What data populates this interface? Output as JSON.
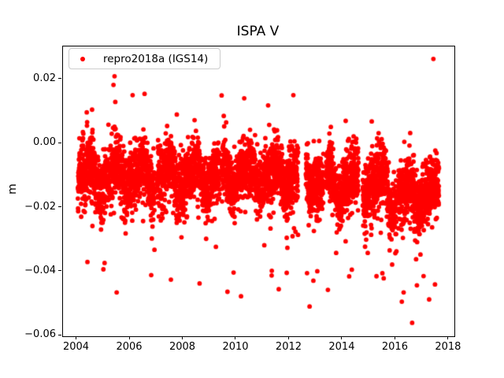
{
  "chart_data": {
    "type": "scatter",
    "title": "ISPA V",
    "xlabel": "",
    "ylabel": "m",
    "grid": false,
    "background": "#ffffff",
    "legend": {
      "label": "repro2018a (IGS14)",
      "marker_color": "#ff0000",
      "position": "upper left"
    },
    "axes": {
      "xlim": [
        2003.48,
        2018.21
      ],
      "ylim": [
        -0.0602,
        0.0303
      ],
      "xticks": [
        2004,
        2006,
        2008,
        2010,
        2012,
        2014,
        2016,
        2018
      ],
      "xtick_labels": [
        "2004",
        "2006",
        "2008",
        "2010",
        "2012",
        "2014",
        "2016",
        "2018"
      ],
      "yticks": [
        0.02,
        0.0,
        -0.02,
        -0.04,
        -0.06
      ],
      "ytick_labels": [
        "0.02",
        "0.00",
        "−0.02",
        "−0.04",
        "−0.06"
      ]
    },
    "marker": {
      "color": "#ff0000",
      "radius_px": 2.9,
      "shape": "circle"
    },
    "series": [
      {
        "name": "repro2018a (IGS14)",
        "color": "#ff0000",
        "description": "Daily GPS vertical position residuals (m) for station ISPA, dense seasonal band centered near -0.010 m drifting to about -0.016 m after 2015, spread roughly 0.00 to -0.025 m with a lower tail to -0.045 m",
        "generator": {
          "seed": 42,
          "t_start": 2004.04,
          "t_end": 2017.63,
          "points_per_year": 365,
          "base_mean": [
            [
              2004.0,
              -0.01
            ],
            [
              2013.0,
              -0.0125
            ],
            [
              2015.7,
              -0.016
            ]
          ],
          "seasonal": {
            "annual_amp": 0.0035,
            "annual_phase": 0.42,
            "semiannual_amp": 0.0016,
            "semiannual_phase": 0.08
          },
          "noise_sigma": 0.0047,
          "lower_tail": {
            "prob": 0.055,
            "scale": 0.0075,
            "max_excursion": 0.035
          },
          "upper_tail": {
            "prob": 0.02,
            "scale": 0.005,
            "max_excursion": 0.018
          },
          "clamp": [
            -0.052,
            0.022
          ],
          "gaps": [
            [
              2006.93,
              2007.02
            ],
            [
              2009.38,
              2009.46
            ],
            [
              2012.33,
              2012.62
            ],
            [
              2013.28,
              2013.38
            ],
            [
              2014.6,
              2014.76
            ],
            [
              2016.03,
              2016.1
            ]
          ]
        },
        "notable_points": [
          [
            2017.42,
            0.0264
          ],
          [
            2016.62,
            -0.056
          ],
          [
            2005.42,
            0.021
          ],
          [
            2005.38,
            0.0183
          ],
          [
            2006.1,
            0.0151
          ],
          [
            2006.55,
            0.0155
          ],
          [
            2009.45,
            0.015
          ],
          [
            2010.3,
            0.0141
          ],
          [
            2011.2,
            0.0119
          ],
          [
            2012.15,
            0.0151
          ],
          [
            2015.1,
            0.0069
          ],
          [
            2004.4,
            -0.037
          ],
          [
            2005.0,
            -0.0393
          ],
          [
            2005.5,
            -0.0465
          ],
          [
            2006.8,
            -0.0411
          ],
          [
            2008.62,
            -0.0437
          ],
          [
            2009.67,
            -0.0463
          ],
          [
            2009.9,
            -0.0403
          ],
          [
            2010.18,
            -0.0477
          ],
          [
            2011.6,
            -0.0455
          ],
          [
            2011.9,
            -0.0404
          ],
          [
            2013.05,
            -0.0399
          ],
          [
            2013.45,
            -0.0457
          ],
          [
            2014.25,
            -0.0415
          ],
          [
            2014.35,
            -0.0394
          ],
          [
            2015.5,
            -0.0405
          ],
          [
            2015.55,
            -0.0421
          ],
          [
            2016.3,
            -0.0465
          ],
          [
            2016.8,
            -0.0443
          ],
          [
            2017.05,
            -0.0414
          ],
          [
            2017.26,
            -0.0487
          ],
          [
            2017.48,
            -0.044
          ]
        ]
      }
    ]
  }
}
